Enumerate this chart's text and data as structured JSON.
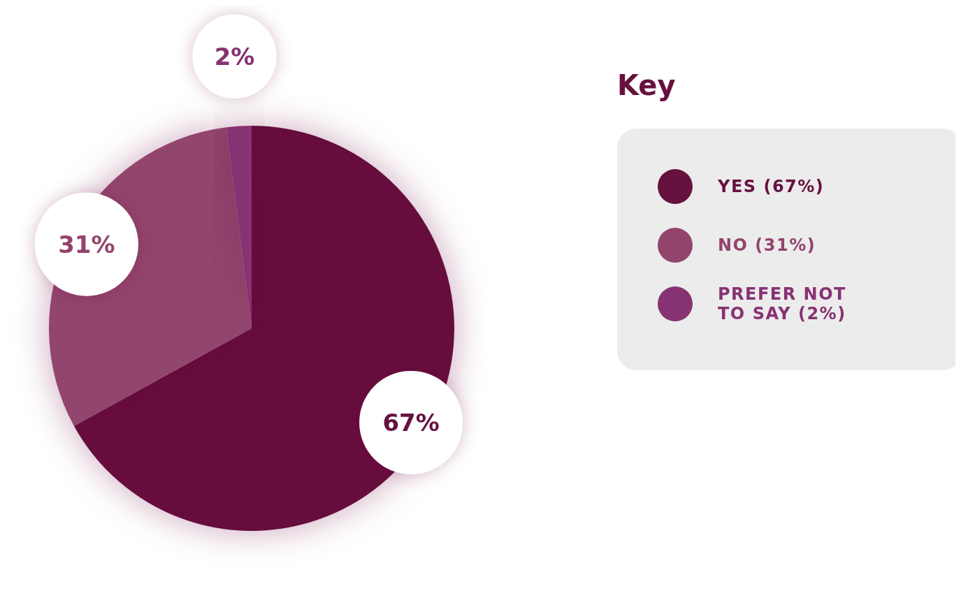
{
  "chart_data": {
    "type": "pie",
    "legend_title": "Key",
    "categories": [
      "YES (67%)",
      "NO (31%)",
      "PREFER NOT TO SAY (2%)"
    ],
    "values": [
      67,
      31,
      2
    ],
    "colors": [
      "#66113e",
      "#92446d",
      "#873272"
    ],
    "value_labels": [
      "67%",
      "31%",
      "2%"
    ],
    "legend": "right"
  }
}
